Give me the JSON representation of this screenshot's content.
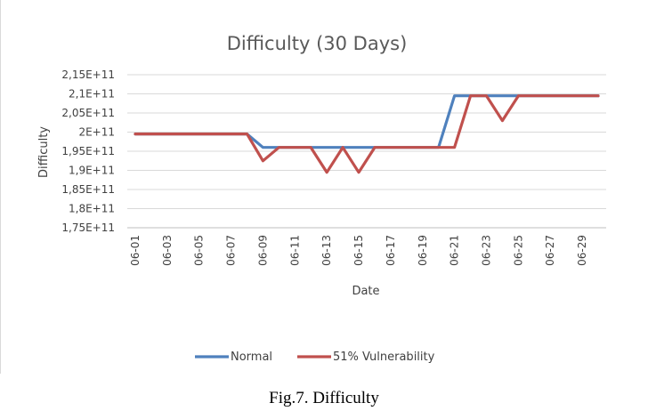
{
  "caption": "Fig.7. Difficulty",
  "chart_data": {
    "type": "line",
    "title": "Difficulty (30 Days)",
    "xlabel": "Date",
    "ylabel": "Difficulty",
    "ylim": [
      175000000000,
      215000000000
    ],
    "yticks": [
      {
        "value": 175000000000,
        "label": "1,75E+11"
      },
      {
        "value": 180000000000,
        "label": "1,8E+11"
      },
      {
        "value": 185000000000,
        "label": "1,85E+11"
      },
      {
        "value": 190000000000,
        "label": "1,9E+11"
      },
      {
        "value": 195000000000,
        "label": "1,95E+11"
      },
      {
        "value": 200000000000,
        "label": "2E+11"
      },
      {
        "value": 205000000000,
        "label": "2,05E+11"
      },
      {
        "value": 210000000000,
        "label": "2,1E+11"
      },
      {
        "value": 215000000000,
        "label": "2,15E+11"
      }
    ],
    "x": [
      "06-01",
      "06-02",
      "06-03",
      "06-04",
      "06-05",
      "06-06",
      "06-07",
      "06-08",
      "06-09",
      "06-10",
      "06-11",
      "06-12",
      "06-13",
      "06-14",
      "06-15",
      "06-16",
      "06-17",
      "06-18",
      "06-19",
      "06-20",
      "06-21",
      "06-22",
      "06-23",
      "06-24",
      "06-25",
      "06-26",
      "06-27",
      "06-28",
      "06-29",
      "06-30"
    ],
    "xtick_labels": [
      "06-01",
      "06-03",
      "06-05",
      "06-07",
      "06-09",
      "06-11",
      "06-13",
      "06-15",
      "06-17",
      "06-19",
      "06-21",
      "06-23",
      "06-25",
      "06-27",
      "06-29"
    ],
    "grid": true,
    "legend_position": "bottom",
    "series": [
      {
        "name": "Normal",
        "color": "#4f81bd",
        "values": [
          199500000000,
          199500000000,
          199500000000,
          199500000000,
          199500000000,
          199500000000,
          199500000000,
          199500000000,
          196000000000,
          196000000000,
          196000000000,
          196000000000,
          196000000000,
          196000000000,
          196000000000,
          196000000000,
          196000000000,
          196000000000,
          196000000000,
          196000000000,
          209500000000,
          209500000000,
          209500000000,
          209500000000,
          209500000000,
          209500000000,
          209500000000,
          209500000000,
          209500000000,
          209500000000
        ]
      },
      {
        "name": "51% Vulnerability",
        "color": "#c0504d",
        "values": [
          199500000000,
          199500000000,
          199500000000,
          199500000000,
          199500000000,
          199500000000,
          199500000000,
          199500000000,
          192500000000,
          196000000000,
          196000000000,
          196000000000,
          189500000000,
          196000000000,
          189500000000,
          196000000000,
          196000000000,
          196000000000,
          196000000000,
          196000000000,
          196000000000,
          209500000000,
          209500000000,
          203000000000,
          209500000000,
          209500000000,
          209500000000,
          209500000000,
          209500000000,
          209500000000
        ]
      }
    ]
  }
}
